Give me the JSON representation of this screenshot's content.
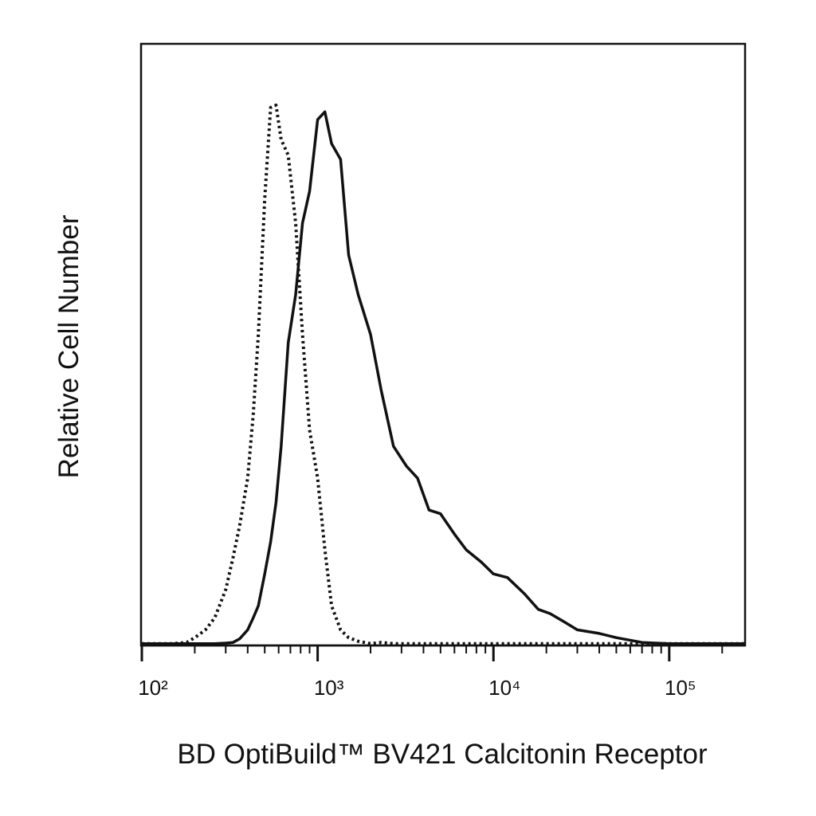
{
  "chart_data": {
    "type": "line",
    "xlabel": "BD OptiBuild™ BV421 Calcitonin Receptor",
    "ylabel": "Relative Cell Number",
    "xscale": "log",
    "xlim": [
      100,
      270000
    ],
    "ylim": [
      0,
      100
    ],
    "xticks": [
      {
        "value": 100,
        "label": "10²"
      },
      {
        "value": 1000,
        "label": "10³"
      },
      {
        "value": 10000,
        "label": "10⁴"
      },
      {
        "value": 100000,
        "label": "10⁵"
      }
    ],
    "xminor_ticks": [
      200,
      300,
      400,
      500,
      600,
      700,
      800,
      900,
      2000,
      3000,
      4000,
      5000,
      6000,
      7000,
      8000,
      9000,
      20000,
      30000,
      40000,
      50000,
      60000,
      70000,
      80000,
      90000,
      200000
    ],
    "x": [
      100,
      150,
      180,
      200,
      230,
      260,
      300,
      330,
      360,
      400,
      430,
      460,
      500,
      540,
      580,
      620,
      680,
      750,
      820,
      900,
      1000,
      1100,
      1200,
      1350,
      1500,
      1700,
      2000,
      2300,
      2700,
      3200,
      3700,
      4300,
      5000,
      6000,
      7000,
      8500,
      10000,
      12000,
      15000,
      18000,
      21000,
      25000,
      30000,
      40000,
      50000,
      70000,
      100000,
      150000,
      270000
    ],
    "series": [
      {
        "color": "#111111",
        "dash": "dotted",
        "values": [
          0.3,
          0.3,
          0.5,
          1.3,
          2.6,
          4.6,
          9.3,
          14.6,
          19.9,
          27.8,
          38.4,
          51.7,
          74.2,
          89.4,
          89.8,
          84.1,
          81.5,
          70.2,
          51.7,
          35.8,
          27.8,
          15.9,
          6.6,
          2.6,
          1.3,
          0.7,
          0.3,
          0.5,
          0.3,
          0.3,
          0.3,
          0.3,
          0.3,
          0.3,
          0.3,
          0.3,
          0.3,
          0.3,
          0.3,
          0.3,
          0.3,
          0.3,
          0.3,
          0.3,
          0.3,
          0.3,
          0.3,
          0.3,
          0.3
        ]
      },
      {
        "color": "#111111",
        "dash": "solid",
        "values": [
          0.3,
          0.3,
          0.3,
          0.3,
          0.3,
          0.3,
          0.4,
          0.5,
          1.1,
          2.6,
          4.6,
          6.6,
          11.9,
          17.2,
          23.8,
          33.1,
          50.3,
          58.3,
          70.2,
          75.5,
          87.4,
          88.7,
          83.4,
          80.8,
          64.9,
          58.3,
          51.7,
          42.4,
          33.1,
          29.8,
          27.8,
          22.5,
          21.9,
          18.5,
          15.9,
          13.9,
          11.9,
          11.3,
          8.6,
          6.0,
          5.3,
          4.0,
          2.6,
          2.0,
          1.3,
          0.5,
          0.3,
          0.3,
          0.3
        ]
      }
    ]
  }
}
